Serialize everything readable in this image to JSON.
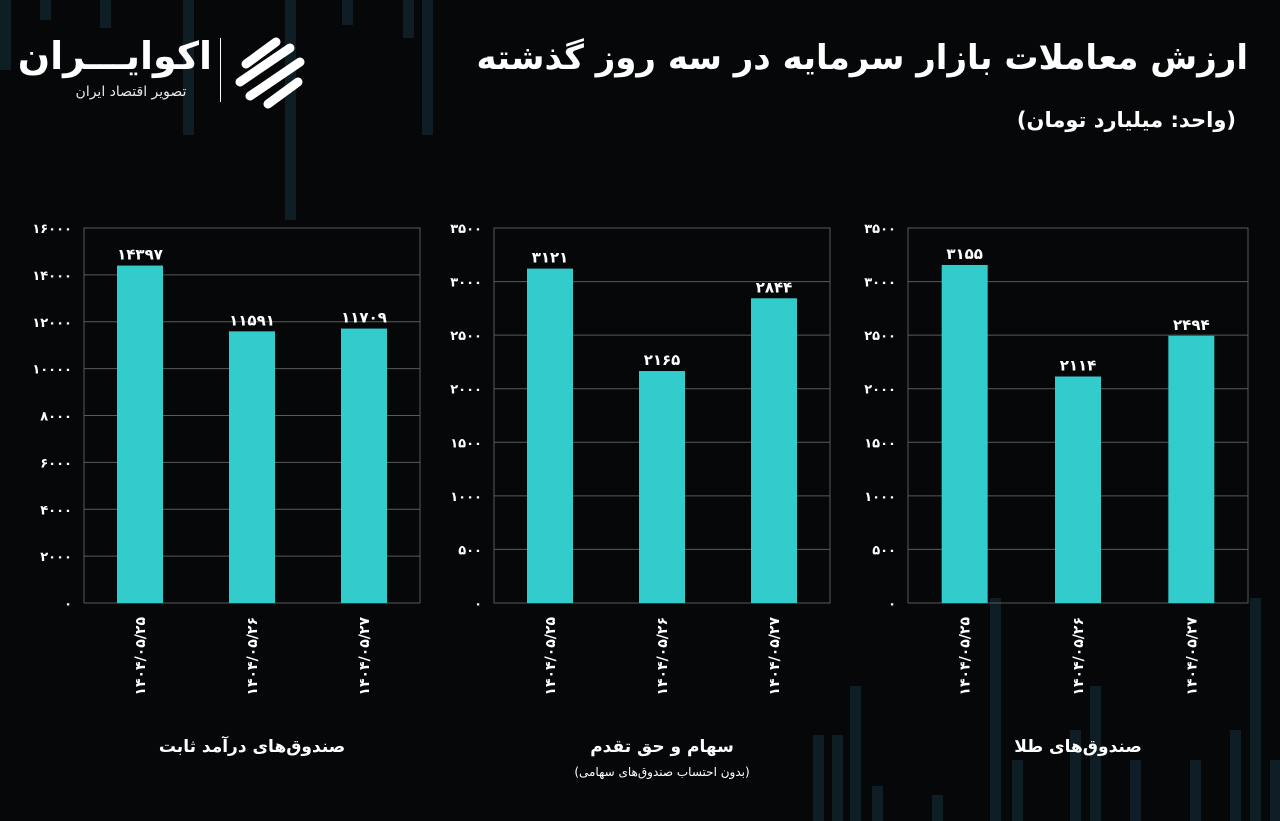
{
  "title": "ارزش معاملات بازار سرمایه در سه روز گذشته",
  "unit": "(واحد: میلیارد تومان)",
  "brand": {
    "name": "اکوایـــران",
    "tagline": "تصویر اقتصاد ایران",
    "logo_icon": "ecoiran-swirl-logo-icon"
  },
  "colors": {
    "background": "#050708",
    "bar": "#33cccc",
    "grid": "#5a5a5a",
    "text": "#ffffff"
  },
  "chart_data": [
    {
      "type": "bar",
      "title": "صندوق‌های درآمد ثابت",
      "subtitle": "",
      "categories": [
        "۱۴۰۴/۰۵/۲۵",
        "۱۴۰۴/۰۵/۲۶",
        "۱۴۰۴/۰۵/۲۷"
      ],
      "values": [
        14397,
        11591,
        11709
      ],
      "value_labels": [
        "۱۴۳۹۷",
        "۱۱۵۹۱",
        "۱۱۷۰۹"
      ],
      "ylim": [
        0,
        16000
      ],
      "yticks": [
        0,
        2000,
        4000,
        6000,
        8000,
        10000,
        12000,
        14000,
        16000
      ],
      "ytick_labels": [
        "۰",
        "۲۰۰۰",
        "۴۰۰۰",
        "۶۰۰۰",
        "۸۰۰۰",
        "۱۰۰۰۰",
        "۱۲۰۰۰",
        "۱۴۰۰۰",
        "۱۶۰۰۰"
      ],
      "grid": true
    },
    {
      "type": "bar",
      "title": "سهام و حق تقدم",
      "subtitle": "(بدون احتساب صندوق‌های سهامی)",
      "categories": [
        "۱۴۰۴/۰۵/۲۵",
        "۱۴۰۴/۰۵/۲۶",
        "۱۴۰۴/۰۵/۲۷"
      ],
      "values": [
        3121,
        2165,
        2844
      ],
      "value_labels": [
        "۳۱۲۱",
        "۲۱۶۵",
        "۲۸۴۴"
      ],
      "ylim": [
        0,
        3500
      ],
      "yticks": [
        0,
        500,
        1000,
        1500,
        2000,
        2500,
        3000,
        3500
      ],
      "ytick_labels": [
        "۰",
        "۵۰۰",
        "۱۰۰۰",
        "۱۵۰۰",
        "۲۰۰۰",
        "۲۵۰۰",
        "۳۰۰۰",
        "۳۵۰۰"
      ],
      "grid": true
    },
    {
      "type": "bar",
      "title": "صندوق‌های طلا",
      "subtitle": "",
      "categories": [
        "۱۴۰۴/۰۵/۲۵",
        "۱۴۰۴/۰۵/۲۶",
        "۱۴۰۴/۰۵/۲۷"
      ],
      "values": [
        3155,
        2114,
        2494
      ],
      "value_labels": [
        "۳۱۵۵",
        "۲۱۱۴",
        "۲۴۹۴"
      ],
      "ylim": [
        0,
        3500
      ],
      "yticks": [
        0,
        500,
        1000,
        1500,
        2000,
        2500,
        3000,
        3500
      ],
      "ytick_labels": [
        "۰",
        "۵۰۰",
        "۱۰۰۰",
        "۱۵۰۰",
        "۲۰۰۰",
        "۲۵۰۰",
        "۳۰۰۰",
        "۳۵۰۰"
      ],
      "grid": true
    }
  ]
}
